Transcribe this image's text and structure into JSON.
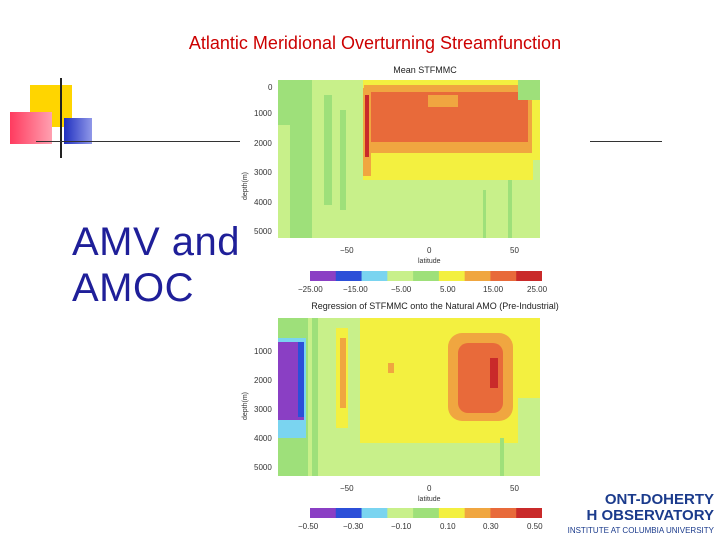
{
  "slide": {
    "title": "Atlantic Meridional Overturning Streamfunction",
    "heading_line1": "AMV and",
    "heading_line2": "AMOC"
  },
  "top_panel": {
    "title": "Mean  STFMMC",
    "ylabel": "depth(m)",
    "xlabel": "latitude",
    "y_ticks": [
      "0",
      "1000",
      "2000",
      "3000",
      "4000",
      "5000"
    ],
    "x_ticks": [
      "−50",
      "0",
      "50"
    ],
    "colorbar_labels": [
      "−25.00",
      "−15.00",
      "−5.00",
      "5.00",
      "15.00",
      "25.00"
    ],
    "colorbar_colors": [
      "#8a3fc4",
      "#2c4fd8",
      "#7ad4f0",
      "#c8f08a",
      "#9ee07a",
      "#f3f040",
      "#f0a640",
      "#e86a3a",
      "#c92a2a"
    ]
  },
  "bottom_panel": {
    "title": "Regression  of  STFMMC  onto  the  Natural  AMO  (Pre-Industrial)",
    "ylabel": "depth(m)",
    "xlabel": "latitude",
    "y_ticks": [
      "1000",
      "2000",
      "3000",
      "4000",
      "5000"
    ],
    "x_ticks": [
      "−50",
      "0",
      "50"
    ],
    "colorbar_labels": [
      "−0.50",
      "−0.30",
      "−0.10",
      "0.10",
      "0.30",
      "0.50"
    ],
    "colorbar_colors": [
      "#8a3fc4",
      "#2c4fd8",
      "#7ad4f0",
      "#c8f08a",
      "#9ee07a",
      "#f3f040",
      "#f0a640",
      "#e86a3a",
      "#c92a2a"
    ]
  },
  "logo": {
    "line1": "ONT-DOHERTY",
    "line2": "H OBSERVATORY",
    "line3": "INSTITUTE AT COLUMBIA UNIVERSITY"
  }
}
